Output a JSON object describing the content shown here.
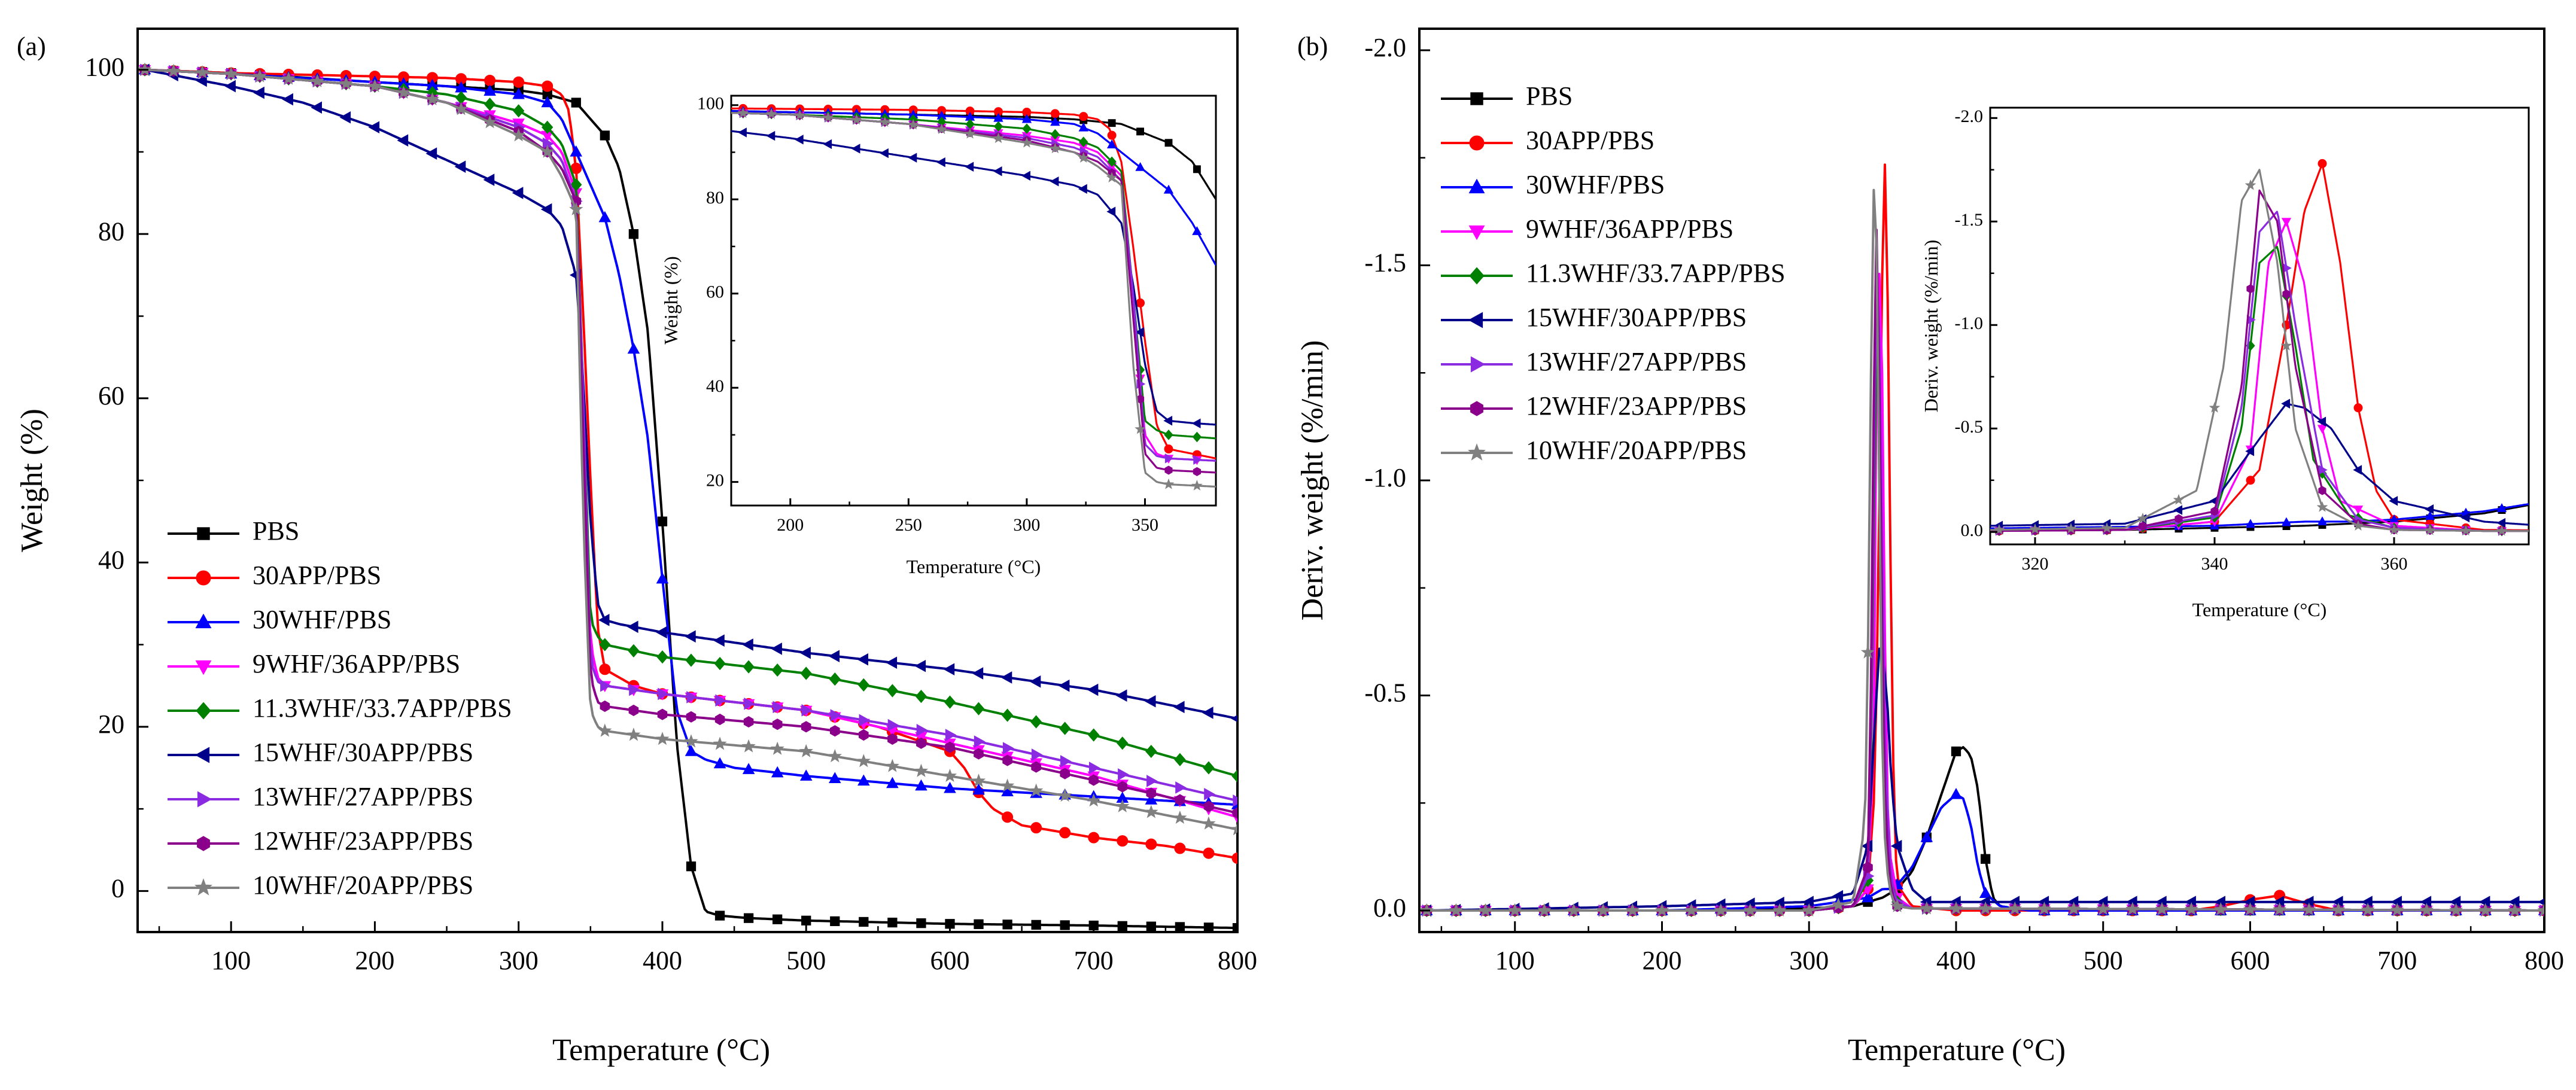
{
  "chart_data": [
    {
      "type": "line",
      "panel_label": "(a)",
      "xlabel": "Temperature",
      "xlabel_unit": "(°C)",
      "ylabel": "Weight (%)",
      "xlim": [
        35,
        800
      ],
      "ylim": [
        -5,
        105
      ],
      "xticks": [
        100,
        200,
        300,
        400,
        500,
        600,
        700,
        800
      ],
      "yticks": [
        0,
        20,
        40,
        60,
        80,
        100
      ],
      "grid": false,
      "legend": "bottom-left",
      "series": [
        {
          "name": "PBS",
          "color": "#000000",
          "marker": "square",
          "x": [
            40,
            100,
            200,
            250,
            300,
            320,
            330,
            340,
            350,
            360,
            370,
            380,
            390,
            400,
            410,
            420,
            430,
            440,
            460,
            500,
            600,
            700,
            800
          ],
          "y": [
            100,
            99.6,
            98.5,
            98,
            97.5,
            97,
            96.5,
            96,
            94,
            92,
            88,
            80,
            68,
            45,
            18,
            3,
            -2.5,
            -3,
            -3.3,
            -3.6,
            -4,
            -4.2,
            -4.5
          ]
        },
        {
          "name": "30APP/PBS",
          "color": "#ff0000",
          "marker": "circle",
          "x": [
            40,
            100,
            200,
            250,
            300,
            320,
            330,
            335,
            340,
            345,
            350,
            355,
            360,
            380,
            400,
            500,
            550,
            600,
            610,
            620,
            630,
            650,
            700,
            750,
            800
          ],
          "y": [
            100,
            99.6,
            99.2,
            99,
            98.5,
            98,
            97,
            95,
            88,
            70,
            50,
            32,
            27,
            25,
            24,
            22,
            20,
            17,
            15,
            12,
            10,
            8,
            6.5,
            5.5,
            4
          ]
        },
        {
          "name": "30WHF/PBS",
          "color": "#0000ff",
          "marker": "triangle-up",
          "x": [
            40,
            100,
            200,
            250,
            300,
            320,
            330,
            340,
            350,
            360,
            370,
            380,
            390,
            400,
            410,
            420,
            430,
            450,
            500,
            600,
            700,
            800
          ],
          "y": [
            100,
            99.5,
            98.5,
            98,
            97,
            96,
            94,
            90,
            86,
            82,
            75,
            66,
            55,
            38,
            22,
            17,
            16,
            15,
            14,
            12.5,
            11.5,
            10.5
          ]
        },
        {
          "name": "9WHF/36APP/PBS",
          "color": "#ff00ff",
          "marker": "triangle-down",
          "x": [
            40,
            100,
            200,
            250,
            300,
            320,
            330,
            340,
            345,
            350,
            355,
            360,
            400,
            500,
            600,
            700,
            800
          ],
          "y": [
            100,
            99.5,
            98,
            96,
            93.5,
            92,
            90,
            85,
            60,
            30,
            26,
            25,
            24,
            22,
            18,
            14,
            9
          ]
        },
        {
          "name": "11.3WHF/33.7APP/PBS",
          "color": "#008000",
          "marker": "diamond",
          "x": [
            40,
            100,
            200,
            250,
            300,
            320,
            330,
            340,
            345,
            350,
            355,
            360,
            400,
            500,
            600,
            700,
            800
          ],
          "y": [
            100,
            99.5,
            98,
            97,
            95,
            93,
            91,
            86,
            60,
            33,
            31,
            30,
            28.5,
            26.5,
            23,
            19,
            14
          ]
        },
        {
          "name": "15WHF/30APP/PBS",
          "color": "#00008b",
          "marker": "triangle-left",
          "x": [
            40,
            100,
            150,
            200,
            250,
            300,
            320,
            330,
            340,
            345,
            350,
            355,
            360,
            370,
            400,
            500,
            600,
            700,
            800
          ],
          "y": [
            100,
            98,
            96,
            93,
            89,
            85,
            83,
            81,
            75,
            62,
            45,
            35,
            33,
            32.5,
            31.5,
            29,
            27,
            24.5,
            21
          ]
        },
        {
          "name": "13WHF/27APP/PBS",
          "color": "#8a2be2",
          "marker": "triangle-right",
          "x": [
            40,
            100,
            200,
            250,
            300,
            320,
            330,
            340,
            345,
            350,
            355,
            360,
            400,
            500,
            600,
            700,
            800
          ],
          "y": [
            100,
            99.5,
            98,
            96,
            93,
            91,
            89,
            84,
            60,
            28,
            25.5,
            25,
            24,
            22,
            19,
            15,
            11
          ]
        },
        {
          "name": "12WHF/23APP/PBS",
          "color": "#8b008b",
          "marker": "hexagon",
          "x": [
            40,
            100,
            200,
            250,
            300,
            320,
            330,
            340,
            345,
            350,
            355,
            360,
            400,
            500,
            600,
            700,
            800
          ],
          "y": [
            100,
            99.5,
            98,
            96,
            92.5,
            90,
            88,
            84,
            55,
            26,
            23,
            22.5,
            21.5,
            20,
            17.5,
            13.5,
            9.5
          ]
        },
        {
          "name": "10WHF/20APP/PBS",
          "color": "#808080",
          "marker": "star",
          "x": [
            40,
            100,
            200,
            250,
            300,
            320,
            330,
            340,
            345,
            350,
            355,
            360,
            400,
            500,
            600,
            700,
            800
          ],
          "y": [
            100,
            99.5,
            98,
            96,
            92,
            90,
            87,
            83,
            45,
            22,
            20,
            19.5,
            18.5,
            17,
            14,
            11,
            7.5
          ]
        }
      ],
      "inset": {
        "xlabel": "Temperature",
        "xlabel_unit": "(°C)",
        "ylabel": "Weight (%)",
        "xlim": [
          175,
          380
        ],
        "ylim": [
          15,
          102
        ],
        "xticks": [
          200,
          250,
          300,
          350
        ],
        "yticks": [
          20,
          40,
          60,
          80,
          100
        ]
      }
    },
    {
      "type": "line",
      "panel_label": "(b)",
      "xlabel": "Temperature",
      "xlabel_unit": "(°C)",
      "ylabel": "Deriv. weight (%/min)",
      "xlim": [
        35,
        800
      ],
      "ylim": [
        0.05,
        -2.05
      ],
      "y_axis_inverted": true,
      "xticks": [
        100,
        200,
        300,
        400,
        500,
        600,
        700,
        800
      ],
      "yticks": [
        0.0,
        -0.5,
        -1.0,
        -1.5,
        -2.0
      ],
      "ytick_labels": [
        "0.0",
        "-0.5",
        "-1.0",
        "-1.5",
        "-2.0"
      ],
      "grid": false,
      "legend": "top-left",
      "series": [
        {
          "name": "PBS",
          "color": "#000000",
          "marker": "square",
          "x": [
            40,
            200,
            300,
            330,
            350,
            360,
            370,
            380,
            390,
            400,
            405,
            410,
            415,
            420,
            425,
            430,
            450,
            800
          ],
          "y": [
            0,
            0,
            -0.005,
            -0.01,
            -0.03,
            -0.05,
            -0.09,
            -0.17,
            -0.27,
            -0.37,
            -0.38,
            -0.36,
            -0.28,
            -0.12,
            -0.03,
            -0.01,
            0,
            0
          ]
        },
        {
          "name": "30APP/PBS",
          "color": "#ff0000",
          "marker": "circle",
          "x": [
            40,
            300,
            330,
            340,
            345,
            348,
            350,
            352,
            354,
            356,
            358,
            360,
            370,
            400,
            560,
            580,
            600,
            620,
            640,
            660,
            800
          ],
          "y": [
            0,
            0,
            -0.01,
            -0.05,
            -0.3,
            -1.0,
            -1.55,
            -1.78,
            -1.3,
            -0.6,
            -0.2,
            -0.06,
            -0.01,
            0,
            0,
            -0.01,
            -0.025,
            -0.035,
            -0.015,
            0,
            0
          ]
        },
        {
          "name": "30WHF/PBS",
          "color": "#0000ff",
          "marker": "triangle-up",
          "x": [
            40,
            200,
            300,
            340,
            345,
            350,
            355,
            360,
            370,
            380,
            390,
            400,
            405,
            410,
            415,
            420,
            430,
            450,
            800
          ],
          "y": [
            0,
            0,
            -0.01,
            -0.03,
            -0.04,
            -0.05,
            -0.05,
            -0.06,
            -0.1,
            -0.17,
            -0.24,
            -0.27,
            -0.26,
            -0.2,
            -0.1,
            -0.04,
            -0.01,
            0,
            0
          ]
        },
        {
          "name": "9WHF/36APP/PBS",
          "color": "#ff00ff",
          "marker": "triangle-down",
          "x": [
            40,
            300,
            330,
            340,
            344,
            346,
            348,
            350,
            352,
            354,
            360,
            370,
            800
          ],
          "y": [
            0,
            0,
            -0.01,
            -0.05,
            -0.4,
            -1.3,
            -1.5,
            -1.2,
            -0.5,
            -0.15,
            -0.03,
            -0.005,
            0
          ]
        },
        {
          "name": "11.3WHF/33.7APP/PBS",
          "color": "#008000",
          "marker": "diamond",
          "x": [
            40,
            300,
            330,
            340,
            343,
            345,
            347,
            349,
            351,
            355,
            360,
            370,
            800
          ],
          "y": [
            0,
            0,
            -0.01,
            -0.07,
            -0.5,
            -1.3,
            -1.38,
            -0.9,
            -0.35,
            -0.08,
            -0.02,
            -0.005,
            0
          ]
        },
        {
          "name": "15WHF/30APP/PBS",
          "color": "#00008b",
          "marker": "triangle-left",
          "x": [
            40,
            200,
            300,
            330,
            340,
            345,
            348,
            350,
            353,
            356,
            360,
            370,
            380,
            800
          ],
          "y": [
            0,
            -0.01,
            -0.02,
            -0.04,
            -0.15,
            -0.45,
            -0.62,
            -0.6,
            -0.5,
            -0.3,
            -0.15,
            -0.05,
            -0.02,
            -0.02
          ]
        },
        {
          "name": "13WHF/27APP/PBS",
          "color": "#8a2be2",
          "marker": "triangle-right",
          "x": [
            40,
            300,
            330,
            340,
            343,
            345,
            347,
            349,
            352,
            356,
            360,
            370,
            800
          ],
          "y": [
            0,
            0,
            -0.01,
            -0.08,
            -0.6,
            -1.45,
            -1.55,
            -1.0,
            -0.3,
            -0.06,
            -0.02,
            -0.005,
            0
          ]
        },
        {
          "name": "12WHF/23APP/PBS",
          "color": "#8b008b",
          "marker": "hexagon",
          "x": [
            40,
            300,
            330,
            340,
            343,
            345,
            347,
            349,
            352,
            356,
            360,
            370,
            800
          ],
          "y": [
            0,
            0,
            -0.01,
            -0.1,
            -0.7,
            -1.65,
            -1.5,
            -0.8,
            -0.2,
            -0.04,
            -0.01,
            -0.005,
            0
          ]
        },
        {
          "name": "10WHF/20APP/PBS",
          "color": "#808080",
          "marker": "star",
          "x": [
            40,
            300,
            330,
            338,
            341,
            343,
            345,
            347,
            349,
            352,
            356,
            360,
            370,
            800
          ],
          "y": [
            0,
            0,
            -0.02,
            -0.2,
            -0.8,
            -1.6,
            -1.75,
            -1.3,
            -0.5,
            -0.12,
            -0.03,
            -0.01,
            -0.005,
            0
          ]
        }
      ],
      "inset": {
        "xlabel": "Temperature",
        "xlabel_unit": "(°C)",
        "ylabel": "Deriv. weight (%/min)",
        "xlim": [
          315,
          375
        ],
        "ylim": [
          0.06,
          -2.05
        ],
        "xticks": [
          320,
          340,
          360
        ],
        "yticks": [
          0.0,
          -0.5,
          -1.0,
          -1.5,
          -2.0
        ],
        "ytick_labels": [
          "0.0",
          "-0.5",
          "-1.0",
          "-1.5",
          "-2.0"
        ]
      }
    }
  ]
}
